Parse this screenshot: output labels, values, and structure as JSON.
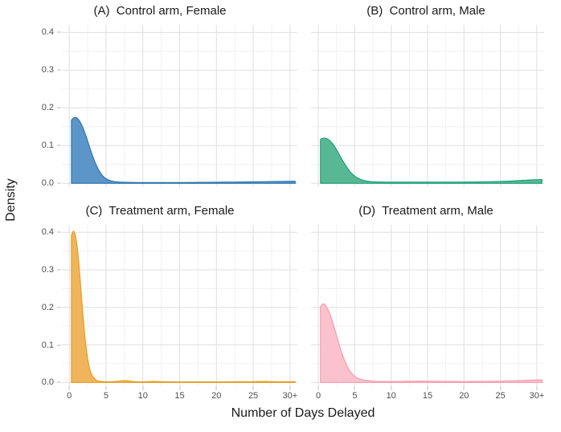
{
  "figure": {
    "x_axis_title": "Number of Days Delayed",
    "y_axis_title": "Density",
    "x_ticks": [
      "0",
      "5",
      "10",
      "15",
      "20",
      "25",
      "30+"
    ],
    "x_tick_values": [
      0,
      5,
      10,
      15,
      20,
      25,
      30
    ],
    "y_ticks": [
      "0.0",
      "0.1",
      "0.2",
      "0.3",
      "0.4"
    ],
    "y_tick_values": [
      0,
      0.1,
      0.2,
      0.3,
      0.4
    ],
    "x_domain": [
      -1,
      31
    ],
    "y_domain": [
      -0.01,
      0.42
    ],
    "x_minor_gridlines": [
      2.5,
      7.5,
      12.5,
      17.5,
      22.5,
      27.5
    ],
    "y_minor_gridlines": [
      0.05,
      0.15,
      0.25,
      0.35
    ],
    "grid_major_color": "#e2e2e2",
    "grid_minor_color": "#f0f0f0",
    "background_color": "#ffffff",
    "tick_label_color": "#4d4d4d",
    "title_color": "#1a1a1a"
  },
  "chart_data": [
    {
      "id": "A",
      "type": "area",
      "title": "(A)  Control arm, Female",
      "arm": "Control",
      "sex": "Female",
      "fill": "#5c95c7",
      "stroke": "#2f77b2",
      "peak_density": 0.175,
      "x": [
        0.3,
        0.8,
        1.3,
        1.8,
        2.3,
        2.8,
        3.3,
        3.8,
        4.3,
        4.8,
        5.3,
        6,
        7,
        8,
        10,
        12,
        15,
        18,
        21,
        24,
        27,
        29,
        30.7
      ],
      "density": [
        0.168,
        0.175,
        0.168,
        0.15,
        0.124,
        0.094,
        0.066,
        0.043,
        0.026,
        0.015,
        0.009,
        0.005,
        0.003,
        0.0025,
        0.002,
        0.002,
        0.002,
        0.0025,
        0.003,
        0.0035,
        0.0045,
        0.005,
        0.0055
      ]
    },
    {
      "id": "B",
      "type": "area",
      "title": "(B)  Control arm, Male",
      "arm": "Control",
      "sex": "Male",
      "fill": "#57b893",
      "stroke": "#1da17a",
      "peak_density": 0.12,
      "x": [
        0.3,
        0.8,
        1.4,
        2.0,
        2.6,
        3.2,
        3.8,
        4.4,
        5.0,
        5.6,
        6.2,
        7,
        8,
        10,
        13,
        16,
        19,
        22,
        25,
        27,
        29,
        30.7
      ],
      "density": [
        0.117,
        0.12,
        0.116,
        0.104,
        0.086,
        0.065,
        0.046,
        0.03,
        0.019,
        0.012,
        0.008,
        0.005,
        0.0035,
        0.003,
        0.003,
        0.003,
        0.003,
        0.0035,
        0.005,
        0.0065,
        0.009,
        0.01
      ]
    },
    {
      "id": "C",
      "type": "area",
      "title": "(C)  Treatment arm, Female",
      "arm": "Treatment",
      "sex": "Female",
      "fill": "#f0b55c",
      "stroke": "#e69d22",
      "peak_density": 0.403,
      "x": [
        0.3,
        0.6,
        0.9,
        1.2,
        1.5,
        1.8,
        2.1,
        2.4,
        2.7,
        3.0,
        3.4,
        3.8,
        4.3,
        5,
        6,
        7,
        7.6,
        8.2,
        9,
        10.5,
        11.5,
        12.5,
        14,
        17,
        20,
        23,
        25,
        26.5,
        28,
        29.5,
        30.7
      ],
      "density": [
        0.392,
        0.403,
        0.385,
        0.34,
        0.27,
        0.195,
        0.128,
        0.077,
        0.043,
        0.023,
        0.011,
        0.005,
        0.003,
        0.002,
        0.002,
        0.004,
        0.005,
        0.004,
        0.002,
        0.002,
        0.003,
        0.002,
        0.0015,
        0.0015,
        0.0015,
        0.002,
        0.002,
        0.003,
        0.002,
        0.002,
        0.002
      ]
    },
    {
      "id": "D",
      "type": "area",
      "title": "(D)  Treatment arm, Male",
      "arm": "Treatment",
      "sex": "Male",
      "fill": "#fbc2cd",
      "stroke": "#f79bb0",
      "peak_density": 0.21,
      "x": [
        0.3,
        0.7,
        1.1,
        1.6,
        2.1,
        2.6,
        3.1,
        3.6,
        4.1,
        4.6,
        5.1,
        5.7,
        6.4,
        7.2,
        8,
        9.5,
        11,
        13,
        15,
        17,
        19,
        21,
        23,
        25,
        27,
        29,
        30.7
      ],
      "density": [
        0.202,
        0.21,
        0.202,
        0.182,
        0.152,
        0.118,
        0.086,
        0.059,
        0.038,
        0.024,
        0.015,
        0.009,
        0.006,
        0.004,
        0.003,
        0.0025,
        0.003,
        0.0035,
        0.0035,
        0.003,
        0.0025,
        0.0025,
        0.003,
        0.0035,
        0.0045,
        0.006,
        0.007
      ]
    }
  ]
}
